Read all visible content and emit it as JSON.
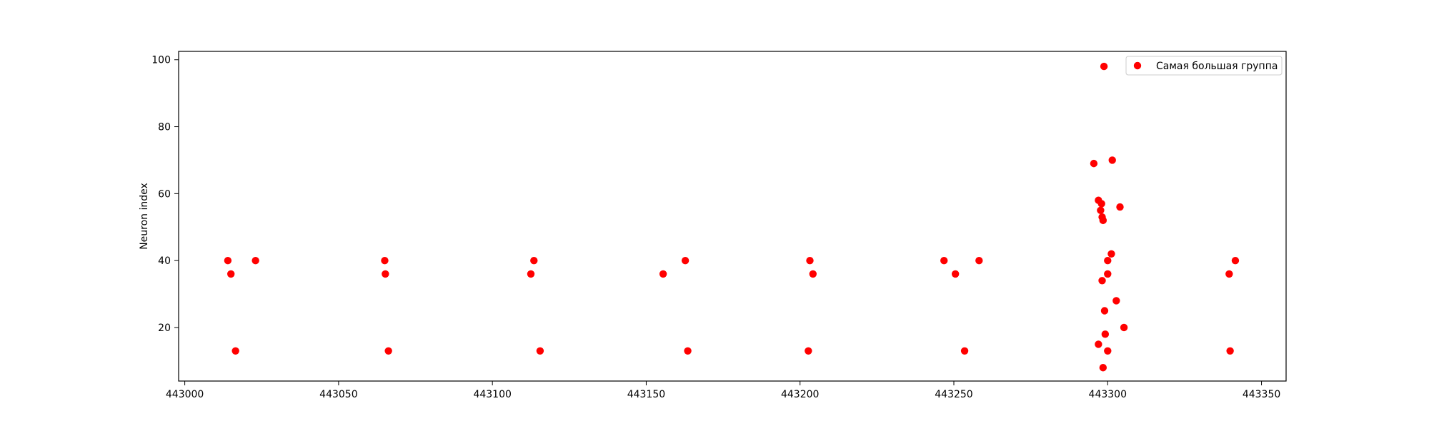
{
  "chart_data": {
    "type": "scatter",
    "title": "",
    "xlabel": "",
    "ylabel": "Neuron index",
    "xlim": [
      442998,
      443358
    ],
    "ylim": [
      4,
      102.5
    ],
    "x_ticks": [
      443000,
      443050,
      443100,
      443150,
      443200,
      443250,
      443300,
      443350
    ],
    "y_ticks": [
      20,
      40,
      60,
      80,
      100
    ],
    "grid": false,
    "legend_position": "top-right",
    "colors": {
      "points": "#ff0000",
      "axes": "#000000",
      "legend_border": "#cccccc"
    },
    "series": [
      {
        "name": "Самая большая группа",
        "points": [
          {
            "x": 443014,
            "y": 40
          },
          {
            "x": 443015,
            "y": 36
          },
          {
            "x": 443016.5,
            "y": 13
          },
          {
            "x": 443023,
            "y": 40
          },
          {
            "x": 443065,
            "y": 40
          },
          {
            "x": 443065.2,
            "y": 36
          },
          {
            "x": 443066.2,
            "y": 13
          },
          {
            "x": 443112.5,
            "y": 36
          },
          {
            "x": 443113.5,
            "y": 40
          },
          {
            "x": 443115.5,
            "y": 13
          },
          {
            "x": 443155.5,
            "y": 36
          },
          {
            "x": 443162.7,
            "y": 40
          },
          {
            "x": 443163.5,
            "y": 13
          },
          {
            "x": 443202.7,
            "y": 13
          },
          {
            "x": 443203.2,
            "y": 40
          },
          {
            "x": 443204.2,
            "y": 36
          },
          {
            "x": 443246.8,
            "y": 40
          },
          {
            "x": 443250.5,
            "y": 36
          },
          {
            "x": 443253.5,
            "y": 13
          },
          {
            "x": 443258.2,
            "y": 40
          },
          {
            "x": 443295.5,
            "y": 69
          },
          {
            "x": 443297,
            "y": 58
          },
          {
            "x": 443297,
            "y": 15
          },
          {
            "x": 443297.7,
            "y": 55
          },
          {
            "x": 443298,
            "y": 57
          },
          {
            "x": 443298.2,
            "y": 53
          },
          {
            "x": 443298.2,
            "y": 34
          },
          {
            "x": 443298.5,
            "y": 52
          },
          {
            "x": 443298.5,
            "y": 8
          },
          {
            "x": 443298.8,
            "y": 98
          },
          {
            "x": 443299,
            "y": 25
          },
          {
            "x": 443299.2,
            "y": 18
          },
          {
            "x": 443300,
            "y": 40
          },
          {
            "x": 443300,
            "y": 36
          },
          {
            "x": 443300,
            "y": 13
          },
          {
            "x": 443301.2,
            "y": 42
          },
          {
            "x": 443301.5,
            "y": 70
          },
          {
            "x": 443302.8,
            "y": 28
          },
          {
            "x": 443304,
            "y": 56
          },
          {
            "x": 443305.3,
            "y": 20
          },
          {
            "x": 443339.5,
            "y": 36
          },
          {
            "x": 443339.8,
            "y": 13
          },
          {
            "x": 443341.5,
            "y": 40
          }
        ]
      }
    ]
  }
}
